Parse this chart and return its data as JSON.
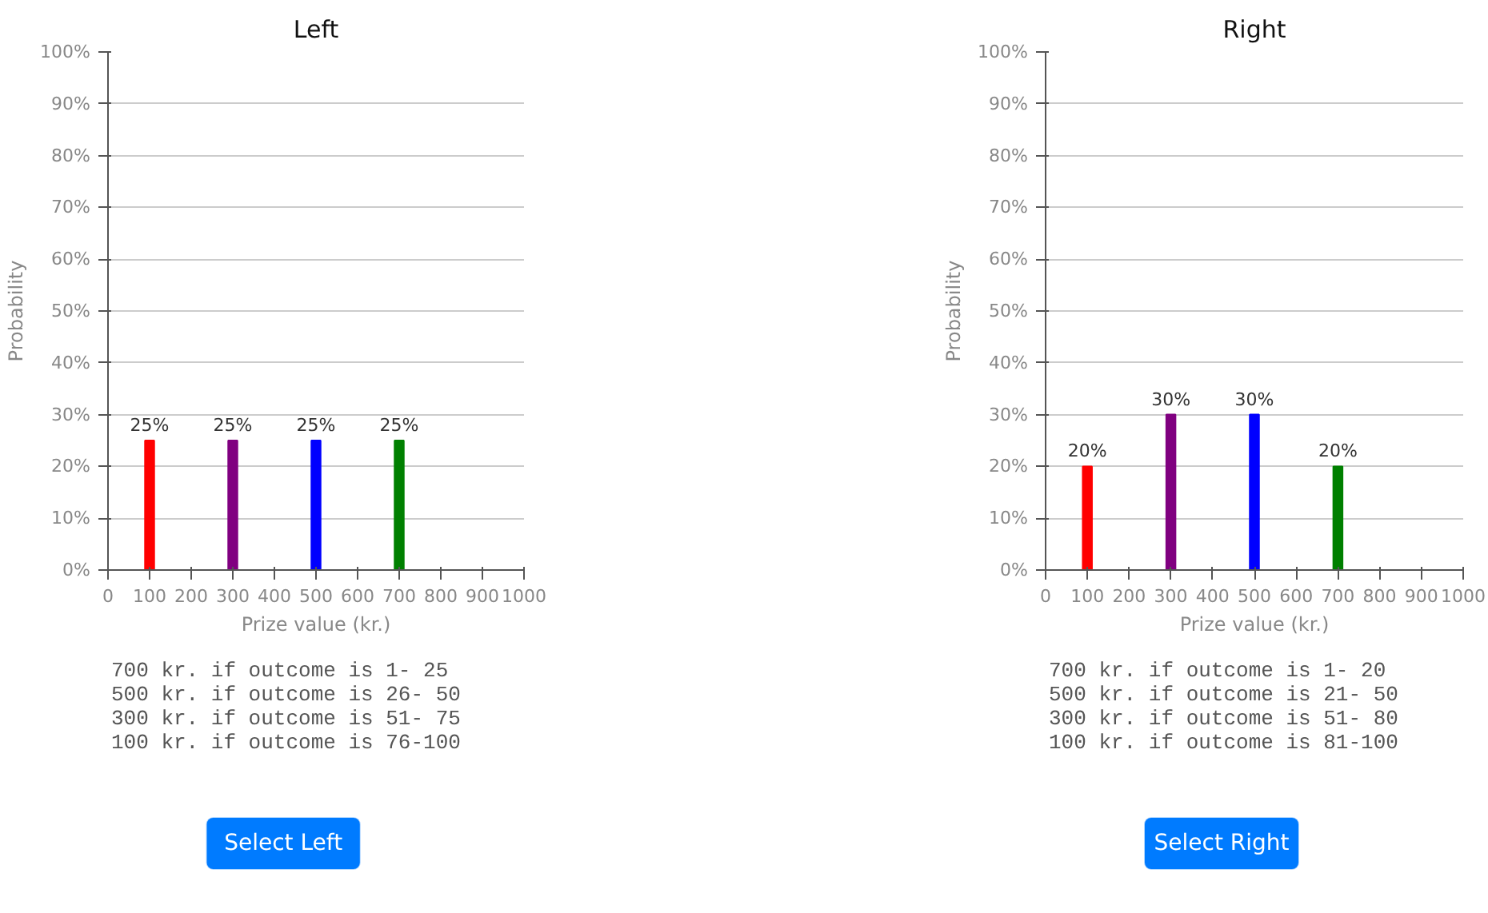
{
  "chart_data": [
    {
      "type": "bar",
      "title": "Left",
      "xlabel": "Prize value (kr.)",
      "ylabel": "Probability",
      "x": [
        100,
        300,
        500,
        700
      ],
      "values": [
        25,
        25,
        25,
        25
      ],
      "colors": [
        "#ff0000",
        "#800080",
        "#0000ff",
        "#008000"
      ],
      "value_labels": [
        "25%",
        "25%",
        "25%",
        "25%"
      ],
      "xlim": [
        0,
        1000
      ],
      "xticks": [
        0,
        100,
        200,
        300,
        400,
        500,
        600,
        700,
        800,
        900,
        1000
      ],
      "ylim": [
        0,
        100
      ],
      "yticks": [
        {
          "value": 0,
          "label": "0%"
        },
        {
          "value": 10,
          "label": "10%"
        },
        {
          "value": 20,
          "label": "20%"
        },
        {
          "value": 30,
          "label": "30%"
        },
        {
          "value": 40,
          "label": "40%"
        },
        {
          "value": 50,
          "label": "50%"
        },
        {
          "value": 60,
          "label": "60%"
        },
        {
          "value": 70,
          "label": "70%"
        },
        {
          "value": 80,
          "label": "80%"
        },
        {
          "value": 90,
          "label": "90%"
        },
        {
          "value": 100,
          "label": "100%"
        }
      ],
      "grid": "y",
      "annotations": [
        "700 kr. if outcome is  1- 25",
        "500 kr. if outcome is 26- 50",
        "300 kr. if outcome is 51- 75",
        "100 kr. if outcome is 76-100",
        "Select Left"
      ]
    },
    {
      "type": "bar",
      "title": "Right",
      "xlabel": "Prize value (kr.)",
      "ylabel": "Probability",
      "x": [
        100,
        300,
        500,
        700
      ],
      "values": [
        20,
        30,
        30,
        20
      ],
      "colors": [
        "#ff0000",
        "#800080",
        "#0000ff",
        "#008000"
      ],
      "value_labels": [
        "20%",
        "30%",
        "30%",
        "20%"
      ],
      "xlim": [
        0,
        1000
      ],
      "xticks": [
        0,
        100,
        200,
        300,
        400,
        500,
        600,
        700,
        800,
        900,
        1000
      ],
      "ylim": [
        0,
        100
      ],
      "yticks": [
        {
          "value": 0,
          "label": "0%"
        },
        {
          "value": 10,
          "label": "10%"
        },
        {
          "value": 20,
          "label": "20%"
        },
        {
          "value": 30,
          "label": "30%"
        },
        {
          "value": 40,
          "label": "40%"
        },
        {
          "value": 50,
          "label": "50%"
        },
        {
          "value": 60,
          "label": "60%"
        },
        {
          "value": 70,
          "label": "70%"
        },
        {
          "value": 80,
          "label": "80%"
        },
        {
          "value": 90,
          "label": "90%"
        },
        {
          "value": 100,
          "label": "100%"
        }
      ],
      "grid": "y",
      "annotations": [
        "700 kr. if outcome is  1- 20",
        "500 kr. if outcome is 21- 50",
        "300 kr. if outcome is 51- 80",
        "100 kr. if outcome is 81-100",
        "Select Right"
      ]
    }
  ]
}
